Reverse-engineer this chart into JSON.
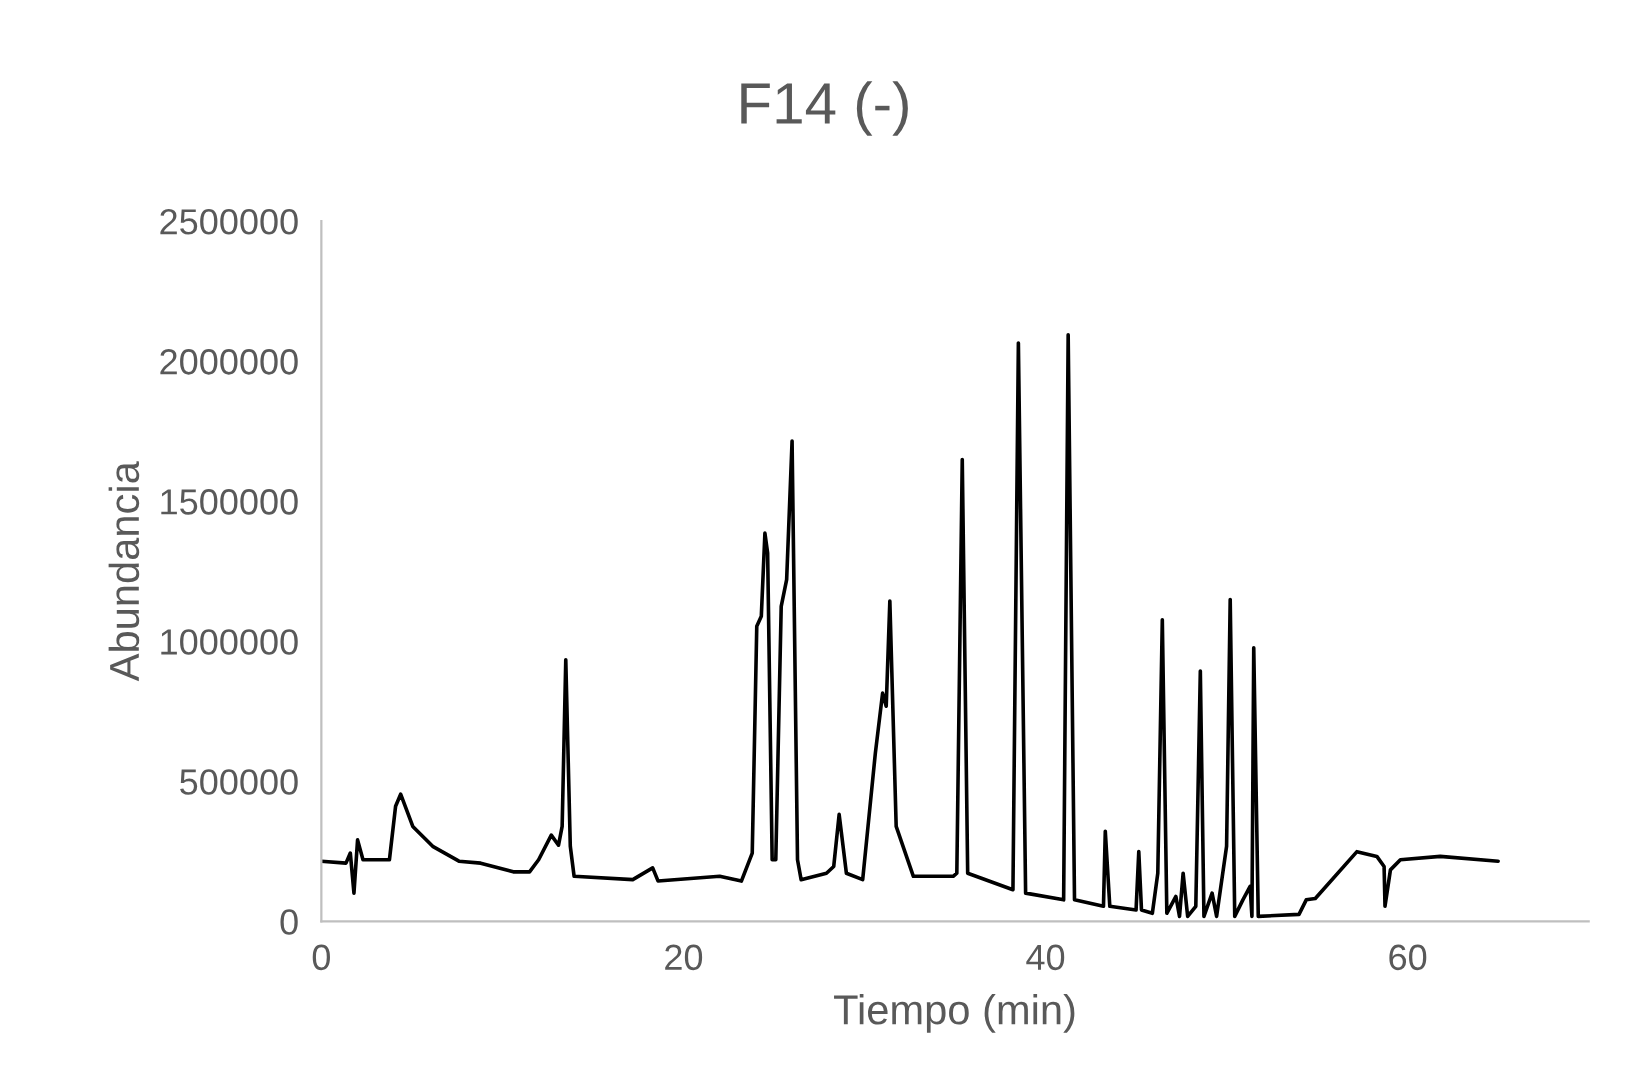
{
  "chart_data": {
    "type": "line",
    "title": "F14 (-)",
    "xlabel": "Tiempo (min)",
    "ylabel": "Abundancia",
    "xlim": [
      0,
      70
    ],
    "xticks": [
      0,
      20,
      40,
      60
    ],
    "ylim": [
      0,
      2500000
    ],
    "yticks": [
      0,
      500000,
      1000000,
      1500000,
      2000000,
      2500000
    ],
    "grid": false,
    "line_style": "solid",
    "marker": "none",
    "series": [
      {
        "color": "#000000",
        "x": [
          0,
          1.36,
          1.6,
          1.8,
          2.0,
          2.3,
          3.76,
          4.1,
          4.38,
          5.05,
          6.15,
          7.6,
          8.8,
          10.6,
          11.5,
          12.0,
          12.7,
          13.1,
          13.3,
          13.5,
          13.75,
          13.96,
          17.2,
          18.3,
          18.6,
          22.0,
          23.2,
          23.8,
          24.05,
          24.3,
          24.5,
          24.65,
          24.9,
          25.1,
          25.4,
          25.7,
          26.0,
          26.3,
          26.5,
          27.9,
          28.3,
          28.6,
          29.0,
          29.9,
          30.6,
          31.0,
          31.2,
          31.4,
          31.75,
          32.7,
          34.9,
          35.1,
          35.4,
          35.7,
          38.2,
          38.5,
          38.9,
          41.0,
          41.25,
          41.6,
          43.2,
          43.3,
          43.55,
          45.0,
          45.15,
          45.3,
          45.9,
          46.2,
          46.45,
          46.7,
          47.2,
          47.4,
          47.6,
          47.85,
          48.3,
          48.55,
          48.75,
          49.2,
          49.45,
          50.0,
          50.2,
          50.45,
          50.9,
          51.3,
          51.4,
          51.5,
          51.75,
          54.0,
          54.4,
          54.9,
          57.2,
          58.3,
          58.7,
          58.75,
          59.05,
          59.6,
          61.8,
          65.0
        ],
        "values": [
          215000,
          208000,
          244000,
          101000,
          291000,
          220000,
          220000,
          411000,
          454000,
          339000,
          268000,
          215000,
          208000,
          177000,
          177000,
          220000,
          308000,
          272000,
          339000,
          934000,
          268000,
          161000,
          149000,
          191000,
          144000,
          161000,
          144000,
          244000,
          1054000,
          1089000,
          1386000,
          1315000,
          220000,
          220000,
          1125000,
          1220000,
          1715000,
          220000,
          149000,
          172000,
          196000,
          382000,
          172000,
          149000,
          601000,
          815000,
          768000,
          1144000,
          339000,
          161000,
          161000,
          172000,
          1649000,
          172000,
          113000,
          2065000,
          101000,
          77000,
          2094000,
          77000,
          54000,
          322000,
          54000,
          41000,
          249000,
          41000,
          29000,
          172000,
          1077000,
          29000,
          89000,
          18000,
          172000,
          18000,
          54000,
          894000,
          18000,
          101000,
          18000,
          268000,
          1149000,
          18000,
          77000,
          125000,
          18000,
          977000,
          18000,
          25000,
          77000,
          82000,
          249000,
          232000,
          196000,
          54000,
          184000,
          220000,
          232000,
          215000
        ]
      }
    ]
  }
}
